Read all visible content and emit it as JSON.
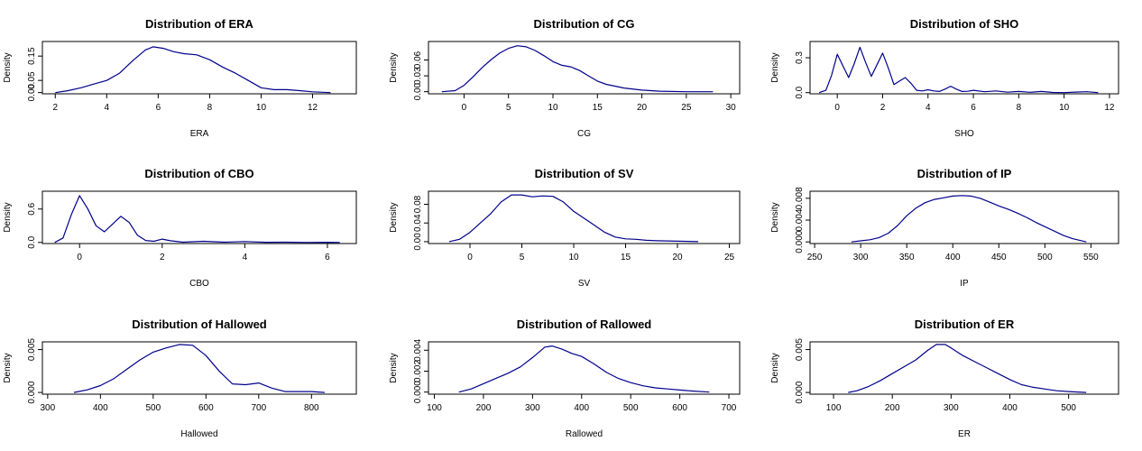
{
  "figure": {
    "line_color": "#00008B",
    "panels_layout": "3x3 grid"
  },
  "chart_data": [
    {
      "type": "line",
      "title": "Distribution of ERA",
      "xlabel": "ERA",
      "ylabel": "Density",
      "xlim": [
        1.5,
        13.7
      ],
      "ylim": [
        -0.005,
        0.21
      ],
      "xticks": [
        "2",
        "4",
        "6",
        "8",
        "10",
        "12"
      ],
      "yticks": [
        "0.00",
        "0.05",
        "0.15"
      ],
      "ytick_values": [
        0,
        0.05,
        0.15
      ],
      "x": [
        2.0,
        2.5,
        3.0,
        3.5,
        4.0,
        4.5,
        5.0,
        5.5,
        5.8,
        6.2,
        6.6,
        7.0,
        7.5,
        8.0,
        8.5,
        9.0,
        9.5,
        10.0,
        10.5,
        11.0,
        11.5,
        12.0,
        12.7
      ],
      "y": [
        0.0,
        0.008,
        0.02,
        0.035,
        0.05,
        0.08,
        0.13,
        0.175,
        0.188,
        0.182,
        0.168,
        0.16,
        0.155,
        0.135,
        0.105,
        0.08,
        0.05,
        0.02,
        0.012,
        0.012,
        0.008,
        0.003,
        0.0
      ]
    },
    {
      "type": "line",
      "title": "Distribution of CG",
      "xlabel": "CG",
      "ylabel": "Density",
      "xlim": [
        -4,
        31
      ],
      "ylim": [
        -0.004,
        0.095
      ],
      "xticks": [
        "0",
        "5",
        "10",
        "15",
        "20",
        "25",
        "30"
      ],
      "yticks": [
        "0.00",
        "0.03",
        "0.06"
      ],
      "ytick_values": [
        0,
        0.03,
        0.06
      ],
      "x": [
        -2.5,
        -1,
        0,
        1,
        2,
        3,
        4,
        5,
        6,
        7,
        8,
        9,
        10,
        11,
        12,
        13,
        14,
        15,
        16,
        18,
        20,
        22,
        25,
        28
      ],
      "y": [
        0.0,
        0.002,
        0.012,
        0.028,
        0.045,
        0.06,
        0.073,
        0.082,
        0.087,
        0.085,
        0.078,
        0.068,
        0.057,
        0.05,
        0.047,
        0.04,
        0.03,
        0.02,
        0.014,
        0.007,
        0.003,
        0.001,
        0.0,
        0.0
      ]
    },
    {
      "type": "line",
      "title": "Distribution of SHO",
      "xlabel": "SHO",
      "ylabel": "Density",
      "xlim": [
        -1.2,
        12.4
      ],
      "ylim": [
        -0.01,
        0.44
      ],
      "xticks": [
        "0",
        "2",
        "4",
        "6",
        "8",
        "10",
        "12"
      ],
      "yticks": [
        "0.0",
        "0.3"
      ],
      "ytick_values": [
        0,
        0.3
      ],
      "x": [
        -0.8,
        -0.5,
        -0.25,
        0.0,
        0.25,
        0.5,
        0.75,
        1.0,
        1.25,
        1.5,
        1.75,
        2.0,
        2.25,
        2.5,
        2.75,
        3.0,
        3.25,
        3.5,
        3.75,
        4.0,
        4.25,
        4.5,
        4.75,
        5.0,
        5.25,
        5.5,
        5.75,
        6.0,
        6.5,
        7.0,
        7.5,
        8.0,
        8.5,
        9.0,
        9.5,
        10.0,
        10.5,
        11.0,
        11.5
      ],
      "y": [
        0.0,
        0.02,
        0.15,
        0.33,
        0.23,
        0.13,
        0.25,
        0.39,
        0.26,
        0.14,
        0.24,
        0.34,
        0.21,
        0.07,
        0.1,
        0.13,
        0.08,
        0.02,
        0.015,
        0.025,
        0.015,
        0.01,
        0.03,
        0.055,
        0.03,
        0.01,
        0.012,
        0.02,
        0.008,
        0.015,
        0.004,
        0.01,
        0.003,
        0.01,
        0.002,
        0.0,
        0.005,
        0.008,
        0.0
      ]
    },
    {
      "type": "line",
      "title": "Distribution of CBO",
      "xlabel": "CBO",
      "ylabel": "Density",
      "xlim": [
        -0.9,
        6.7
      ],
      "ylim": [
        -0.02,
        0.92
      ],
      "xticks": [
        "0",
        "2",
        "4",
        "6"
      ],
      "yticks": [
        "0.0",
        "0.6"
      ],
      "ytick_values": [
        0,
        0.6
      ],
      "x": [
        -0.6,
        -0.4,
        -0.2,
        0.0,
        0.2,
        0.4,
        0.6,
        0.8,
        1.0,
        1.2,
        1.4,
        1.6,
        1.8,
        2.0,
        2.2,
        2.5,
        3.0,
        3.5,
        4.0,
        4.5,
        5.0,
        5.5,
        6.0,
        6.3
      ],
      "y": [
        0.0,
        0.08,
        0.5,
        0.84,
        0.6,
        0.3,
        0.19,
        0.33,
        0.47,
        0.36,
        0.13,
        0.035,
        0.02,
        0.06,
        0.03,
        0.005,
        0.02,
        0.005,
        0.015,
        0.002,
        0.005,
        0.0,
        0.003,
        0.0
      ]
    },
    {
      "type": "line",
      "title": "Distribution of SV",
      "xlabel": "SV",
      "ylabel": "Density",
      "xlim": [
        -4,
        26
      ],
      "ylim": [
        -0.004,
        0.108
      ],
      "xticks": [
        "0",
        "5",
        "10",
        "15",
        "20",
        "25"
      ],
      "yticks": [
        "0.00",
        "0.04",
        "0.08"
      ],
      "ytick_values": [
        0,
        0.04,
        0.08
      ],
      "x": [
        -2,
        -1,
        0,
        1,
        2,
        3,
        4,
        5,
        6,
        7,
        8,
        9,
        10,
        11,
        12,
        13,
        14,
        15,
        16,
        17,
        18,
        20,
        22
      ],
      "y": [
        0.0,
        0.005,
        0.02,
        0.04,
        0.06,
        0.085,
        0.1,
        0.1,
        0.096,
        0.098,
        0.097,
        0.085,
        0.065,
        0.05,
        0.035,
        0.02,
        0.01,
        0.006,
        0.005,
        0.003,
        0.002,
        0.001,
        0.0
      ]
    },
    {
      "type": "line",
      "title": "Distribution of IP",
      "xlabel": "IP",
      "ylabel": "Density",
      "xlim": [
        245,
        580
      ],
      "ylim": [
        -0.0003,
        0.0093
      ],
      "xticks": [
        "250",
        "300",
        "350",
        "400",
        "450",
        "500",
        "550"
      ],
      "yticks": [
        "0.000",
        "0.004",
        "0.008"
      ],
      "ytick_values": [
        0,
        0.004,
        0.008
      ],
      "x": [
        290,
        300,
        310,
        320,
        330,
        340,
        350,
        360,
        370,
        380,
        390,
        400,
        410,
        420,
        430,
        440,
        450,
        460,
        470,
        480,
        490,
        500,
        510,
        520,
        530,
        545
      ],
      "y": [
        0.0,
        0.0002,
        0.0004,
        0.0008,
        0.0016,
        0.003,
        0.0048,
        0.0062,
        0.0072,
        0.0078,
        0.0081,
        0.0084,
        0.0085,
        0.0084,
        0.008,
        0.0073,
        0.0066,
        0.006,
        0.0053,
        0.0045,
        0.0036,
        0.0028,
        0.002,
        0.0012,
        0.0006,
        0.0
      ]
    },
    {
      "type": "line",
      "title": "Distribution of Hallowed",
      "xlabel": "Hallowed",
      "ylabel": "Density",
      "xlim": [
        290,
        885
      ],
      "ylim": [
        -0.0002,
        0.0059
      ],
      "xticks": [
        "300",
        "400",
        "500",
        "600",
        "700",
        "800"
      ],
      "yticks": [
        "0.000",
        "0.005"
      ],
      "ytick_values": [
        0,
        0.005
      ],
      "x": [
        350,
        375,
        400,
        425,
        450,
        475,
        500,
        525,
        550,
        575,
        600,
        625,
        650,
        675,
        700,
        725,
        750,
        775,
        800,
        825
      ],
      "y": [
        0.0,
        0.0003,
        0.0008,
        0.0016,
        0.0027,
        0.0038,
        0.0047,
        0.0052,
        0.0056,
        0.0055,
        0.0043,
        0.0025,
        0.001,
        0.0009,
        0.0011,
        0.0005,
        0.0001,
        0.0001,
        0.0001,
        0.0
      ]
    },
    {
      "type": "line",
      "title": "Distribution of Rallowed",
      "xlabel": "Rallowed",
      "ylabel": "Density",
      "xlim": [
        88,
        722
      ],
      "ylim": [
        -0.0002,
        0.0048
      ],
      "xticks": [
        "100",
        "200",
        "300",
        "400",
        "500",
        "600",
        "700"
      ],
      "yticks": [
        "0.000",
        "0.002",
        "0.004"
      ],
      "ytick_values": [
        0,
        0.002,
        0.004
      ],
      "x": [
        150,
        175,
        200,
        225,
        250,
        275,
        300,
        325,
        340,
        360,
        380,
        400,
        425,
        450,
        475,
        500,
        525,
        550,
        575,
        600,
        625,
        660
      ],
      "y": [
        0.0,
        0.0003,
        0.0008,
        0.0013,
        0.0018,
        0.0024,
        0.0033,
        0.0043,
        0.0044,
        0.0041,
        0.0037,
        0.0034,
        0.0027,
        0.0019,
        0.0013,
        0.0009,
        0.0006,
        0.0004,
        0.0003,
        0.0002,
        0.0001,
        0.0
      ]
    },
    {
      "type": "line",
      "title": "Distribution of ER",
      "xlabel": "ER",
      "ylabel": "Density",
      "xlim": [
        60,
        585
      ],
      "ylim": [
        -0.0002,
        0.0059
      ],
      "xticks": [
        "100",
        "200",
        "300",
        "400",
        "500"
      ],
      "yticks": [
        "0.000",
        "0.005"
      ],
      "ytick_values": [
        0,
        0.005
      ],
      "x": [
        125,
        140,
        160,
        180,
        200,
        220,
        240,
        260,
        275,
        290,
        300,
        320,
        340,
        360,
        380,
        400,
        420,
        440,
        460,
        480,
        500,
        530
      ],
      "y": [
        0.0,
        0.0002,
        0.0007,
        0.0014,
        0.0022,
        0.003,
        0.0038,
        0.0049,
        0.0056,
        0.0056,
        0.0052,
        0.0043,
        0.0036,
        0.0029,
        0.0022,
        0.0015,
        0.0009,
        0.0006,
        0.0004,
        0.0002,
        0.0001,
        0.0
      ]
    }
  ]
}
